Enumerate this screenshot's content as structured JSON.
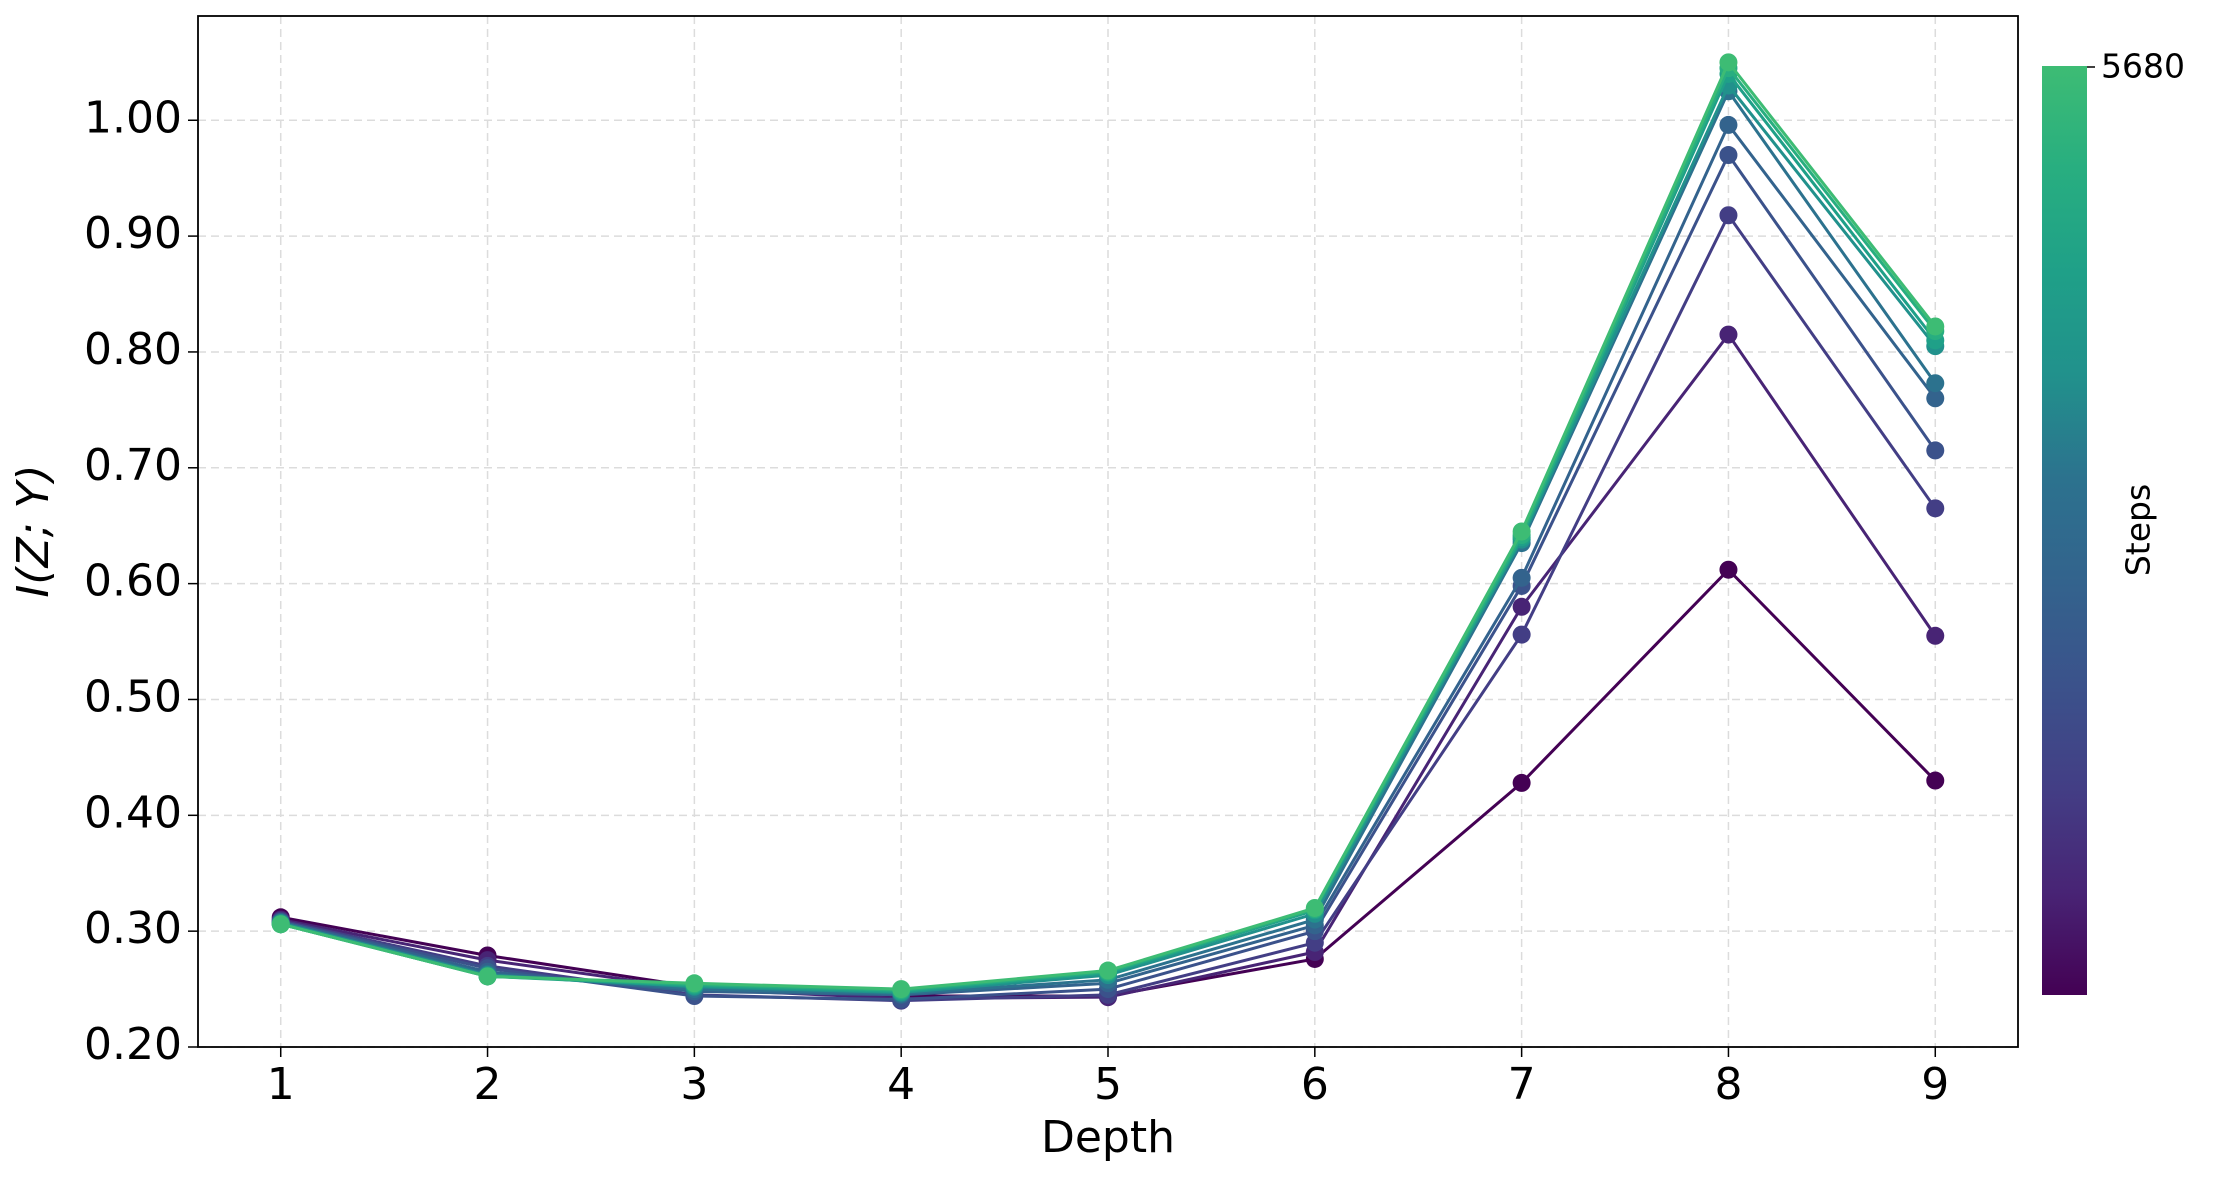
{
  "chart_data": {
    "type": "line",
    "x_label": "Depth",
    "y_label": "I(Z; Y)",
    "x": [
      1,
      2,
      3,
      4,
      5,
      6,
      7,
      8,
      9
    ],
    "xlim": [
      0.6,
      9.4
    ],
    "xticks": [
      1,
      2,
      3,
      4,
      5,
      6,
      7,
      8,
      9
    ],
    "ylim": [
      0.2,
      1.09
    ],
    "yticks": [
      {
        "value": 0.2,
        "label": "0.20"
      },
      {
        "value": 0.3,
        "label": "0.30"
      },
      {
        "value": 0.4,
        "label": "0.40"
      },
      {
        "value": 0.5,
        "label": "0.50"
      },
      {
        "value": 0.6,
        "label": "0.60"
      },
      {
        "value": 0.7,
        "label": "0.70"
      },
      {
        "value": 0.8,
        "label": "0.80"
      },
      {
        "value": 0.9,
        "label": "0.90"
      },
      {
        "value": 1.0,
        "label": "1.00"
      }
    ],
    "grid": true,
    "series": [
      {
        "color": "#440154",
        "values": [
          0.312,
          0.279,
          0.252,
          0.244,
          0.244,
          0.276,
          0.428,
          0.612,
          0.43
        ]
      },
      {
        "color": "#482475",
        "values": [
          0.31,
          0.275,
          0.25,
          0.242,
          0.243,
          0.282,
          0.58,
          0.815,
          0.555
        ]
      },
      {
        "color": "#433e85",
        "values": [
          0.309,
          0.27,
          0.245,
          0.24,
          0.245,
          0.29,
          0.556,
          0.918,
          0.665
        ]
      },
      {
        "color": "#3b528b",
        "values": [
          0.308,
          0.268,
          0.244,
          0.241,
          0.25,
          0.3,
          0.598,
          0.97,
          0.715
        ]
      },
      {
        "color": "#33638d",
        "values": [
          0.308,
          0.265,
          0.248,
          0.245,
          0.255,
          0.305,
          0.605,
          0.996,
          0.76
        ]
      },
      {
        "color": "#2c728e",
        "values": [
          0.307,
          0.263,
          0.25,
          0.246,
          0.258,
          0.31,
          0.635,
          1.025,
          0.773
        ]
      },
      {
        "color": "#21918c",
        "values": [
          0.307,
          0.262,
          0.252,
          0.247,
          0.262,
          0.315,
          0.638,
          1.03,
          0.805
        ]
      },
      {
        "color": "#1fa088",
        "values": [
          0.306,
          0.261,
          0.253,
          0.248,
          0.264,
          0.318,
          0.64,
          1.04,
          0.81
        ]
      },
      {
        "color": "#28ae80",
        "values": [
          0.306,
          0.261,
          0.254,
          0.249,
          0.265,
          0.319,
          0.642,
          1.045,
          0.818
        ]
      },
      {
        "color": "#3dbc74",
        "values": [
          0.306,
          0.261,
          0.255,
          0.25,
          0.266,
          0.32,
          0.645,
          1.05,
          0.822
        ]
      }
    ],
    "colorbar": {
      "label": "Steps",
      "ticks": [
        5680
      ],
      "colors": [
        "#440154",
        "#482475",
        "#433e85",
        "#3b528b",
        "#33638d",
        "#2c728e",
        "#21918c",
        "#1fa088",
        "#28ae80",
        "#3dbc74"
      ]
    }
  }
}
